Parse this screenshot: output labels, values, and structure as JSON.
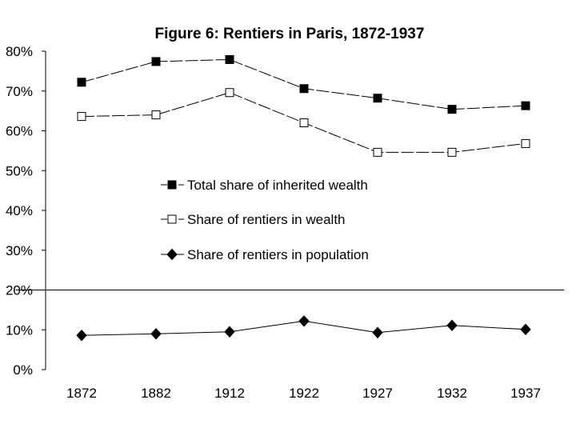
{
  "chart_data": {
    "type": "line",
    "title": "Figure 6: Rentiers in Paris, 1872-1937",
    "xlabel": "",
    "ylabel": "",
    "categories": [
      "1872",
      "1882",
      "1912",
      "1922",
      "1927",
      "1932",
      "1937"
    ],
    "ylim": [
      0,
      80
    ],
    "y_ticks": [
      "0%",
      "10%",
      "20%",
      "30%",
      "40%",
      "50%",
      "60%",
      "70%",
      "80%"
    ],
    "y_tick_values": [
      0,
      10,
      20,
      30,
      40,
      50,
      60,
      70,
      80
    ],
    "reference_line_y": 20,
    "grid": false,
    "legend_position": "center",
    "series": [
      {
        "name": "Total share of inherited wealth",
        "marker": "filled-square",
        "line_style": "dashed",
        "values": [
          72.2,
          77.4,
          77.9,
          70.6,
          68.2,
          65.4,
          66.3
        ]
      },
      {
        "name": "Share of rentiers in wealth",
        "marker": "open-square",
        "line_style": "dashed",
        "values": [
          63.6,
          64.0,
          69.6,
          62.0,
          54.6,
          54.6,
          56.8
        ]
      },
      {
        "name": "Share of rentiers in population",
        "marker": "filled-diamond",
        "line_style": "solid",
        "values": [
          8.6,
          9.0,
          9.5,
          12.2,
          9.3,
          11.1,
          10.1
        ]
      }
    ]
  }
}
